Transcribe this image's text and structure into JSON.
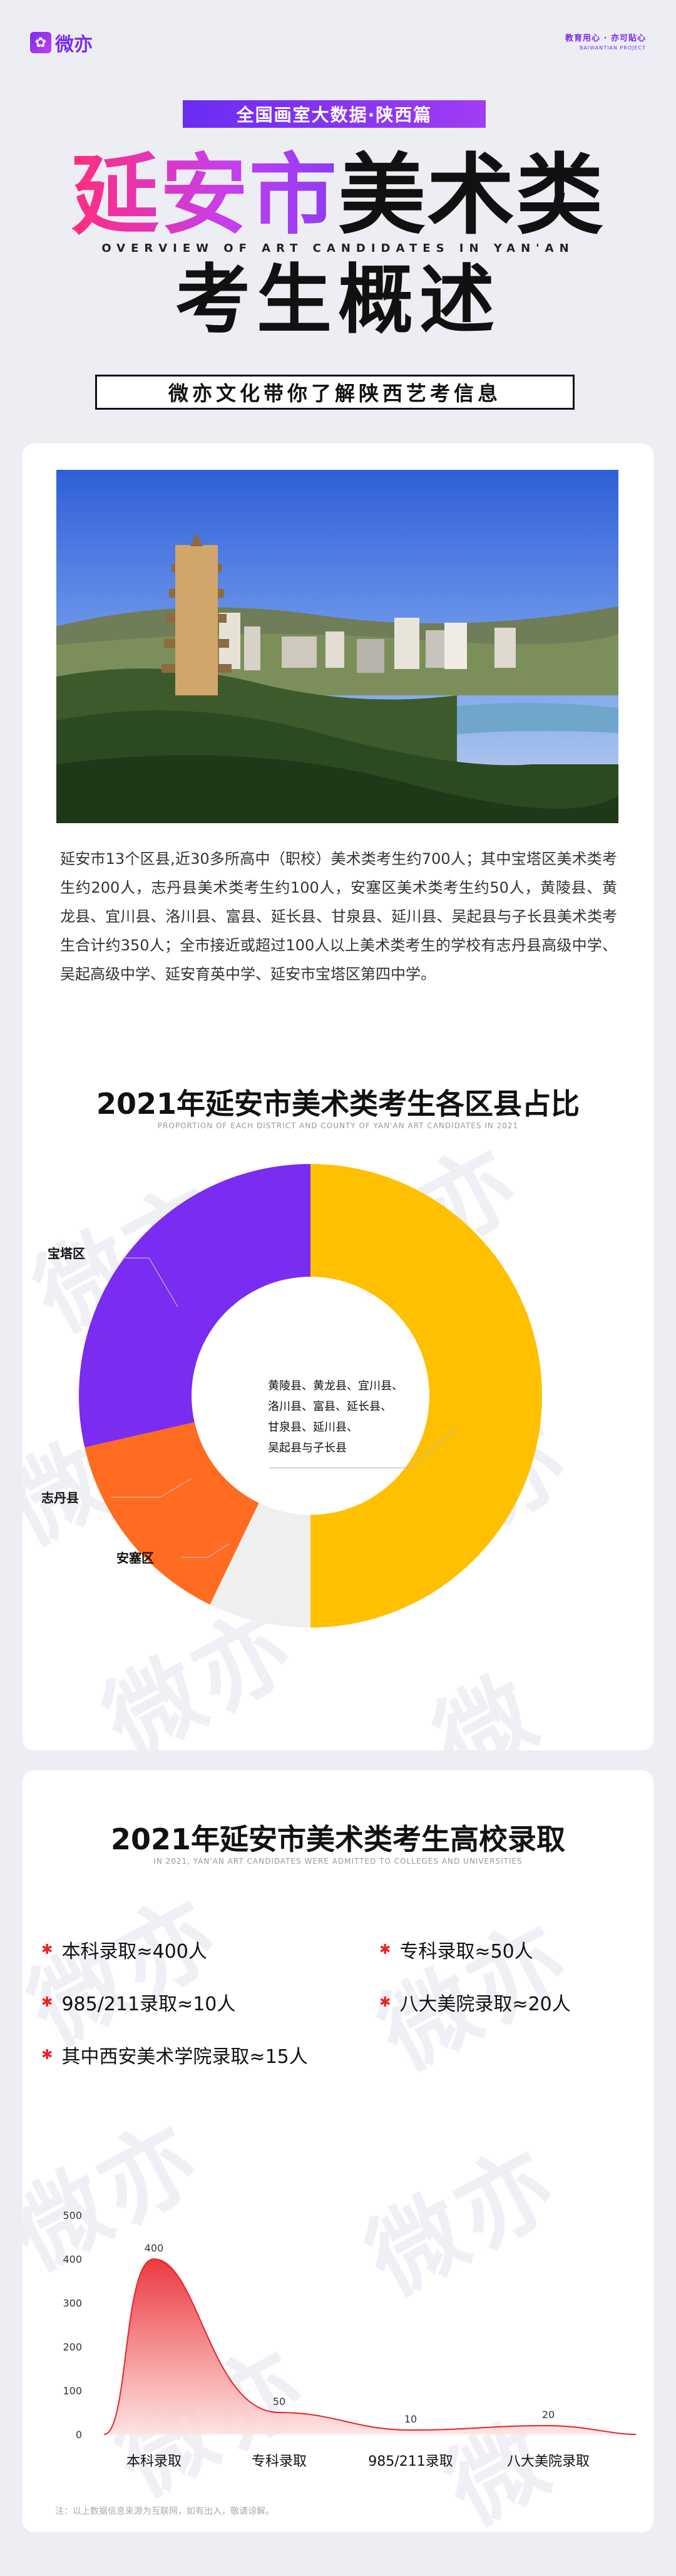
{
  "header": {
    "logo_text": "微亦",
    "slogan_line1": "教育用心 · 亦可貼心",
    "slogan_line2": "BAIWANTIAN PROJECT",
    "series_tag": "全国画室大数据·陕西篇",
    "title_part1": "延安市",
    "title_part2": "美术类",
    "title_en": "OVERVIEW OF ART CANDIDATES IN YAN'AN",
    "title_line2": "考生概述",
    "subtitle": "微亦文化带你了解陕西艺考信息"
  },
  "intro_text": "延安市13个区县,近30多所高中（职校）美术类考生约700人；其中宝塔区美术类考生约200人，志丹县美术类考生约100人，安塞区美术类考生约50人，黄陵县、黄龙县、宜川县、洛川县、富县、延长县、甘泉县、延川县、吴起县与子长县美术类考生合计约350人；全市接近或超过100人以上美术类考生的学校有志丹县高级中学、吴起高级中学、延安育英中学、延安市宝塔区第四中学。",
  "watermark": "微亦",
  "chart1": {
    "title": "2021年延安市美术类考生各区县占比",
    "subtitle": "PROPORTION OF EACH DISTRICT AND COUNTY OF YAN'AN ART CANDIDATES IN 2021",
    "label_baota": "宝塔区",
    "label_zhidan": "志丹县",
    "label_ansai": "安塞区",
    "label_others_lines": [
      "黄陵县、黄龙县、宜川县、",
      "洛川县、富县、延长县、",
      "甘泉县、延川县、",
      "吴起县与子长县"
    ]
  },
  "chart2": {
    "title": "2021年延安市美术类考生高校录取",
    "subtitle": "IN 2021, YAN'AN ART CANDIDATES WERE ADMITTED TO COLLEGES AND UNIVERSITIES",
    "stats": [
      "本科录取≈400人",
      "专科录取≈50人",
      "985/211录取≈10人",
      "八大美院录取≈20人",
      "其中西安美术学院录取≈15人"
    ],
    "note": "注：以上数据信息来源为互联网，如有出入，敬请谅解。"
  },
  "colors": {
    "purple": "#7a2cf0",
    "yellow": "#ffc000",
    "orange": "#ff6b21",
    "grey": "#efefef",
    "red": "#e8242a"
  },
  "chart_data": [
    {
      "type": "pie",
      "title": "2021年延安市美术类考生各区县占比",
      "categories": [
        "黄陵县、黄龙县、宜川县、洛川县、富县、延长县、甘泉县、延川县、吴起县与子长县",
        "安塞区",
        "志丹县",
        "宝塔区"
      ],
      "values": [
        350,
        50,
        100,
        200
      ],
      "colors": [
        "#ffc000",
        "#efefef",
        "#ff6b21",
        "#7a2cf0"
      ]
    },
    {
      "type": "area",
      "title": "2021年延安市美术类考生高校录取",
      "categories": [
        "本科录取",
        "专科录取",
        "985/211录取",
        "八大美院录取"
      ],
      "values": [
        400,
        50,
        10,
        20
      ],
      "yticks": [
        0,
        100,
        200,
        300,
        400,
        500
      ],
      "ylim": [
        0,
        500
      ]
    }
  ]
}
